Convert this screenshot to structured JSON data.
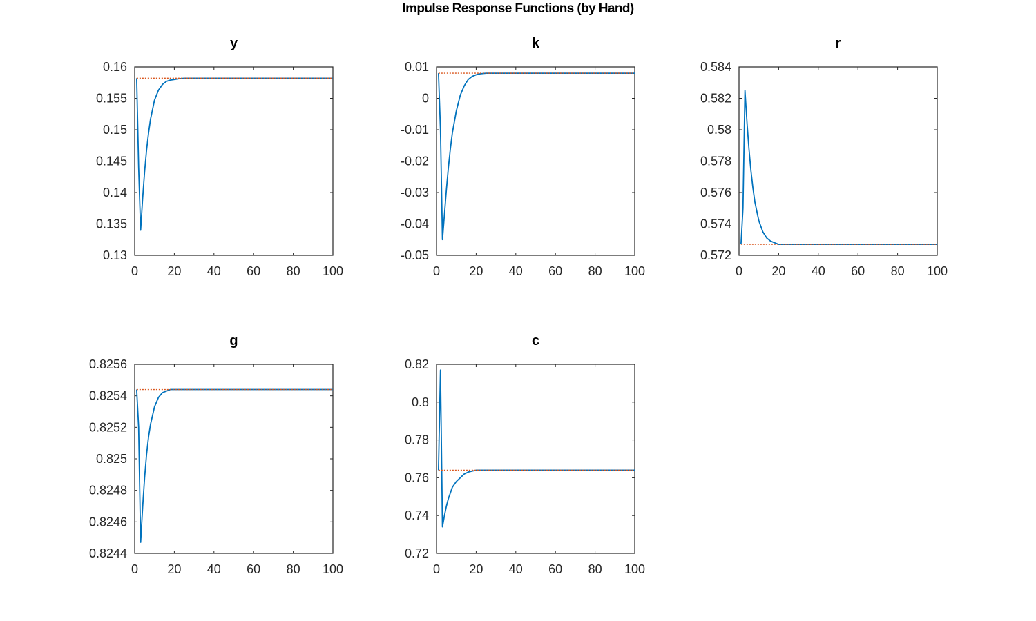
{
  "figure": {
    "title": "Impulse Response Functions (by Hand)"
  },
  "colors": {
    "response_line": "#0072BD",
    "steady_state_line": "#D95319",
    "axes": "#262626",
    "background": "#ffffff"
  },
  "chart_data": [
    {
      "type": "line",
      "title": "y",
      "xlim": [
        0,
        100
      ],
      "ylim": [
        0.13,
        0.16
      ],
      "xticks": [
        "0",
        "20",
        "40",
        "60",
        "80",
        "100"
      ],
      "yticks": [
        "0.13",
        "0.135",
        "0.14",
        "0.145",
        "0.15",
        "0.155",
        "0.16"
      ],
      "steady_state": 0.1582,
      "series": [
        {
          "x": [
            1,
            2,
            3,
            4,
            5,
            6,
            7,
            8,
            10,
            12,
            14,
            16,
            18,
            20,
            22,
            25,
            30,
            40,
            60,
            80,
            100
          ],
          "values": [
            0.1582,
            0.144,
            0.134,
            0.139,
            0.1433,
            0.1468,
            0.1495,
            0.1517,
            0.1547,
            0.1563,
            0.1572,
            0.1577,
            0.1579,
            0.158,
            0.1581,
            0.1582,
            0.1582,
            0.1582,
            0.1582,
            0.1582,
            0.1582
          ]
        }
      ]
    },
    {
      "type": "line",
      "title": "k",
      "xlim": [
        0,
        100
      ],
      "ylim": [
        -0.05,
        0.01
      ],
      "xticks": [
        "0",
        "20",
        "40",
        "60",
        "80",
        "100"
      ],
      "yticks": [
        "-0.05",
        "-0.04",
        "-0.03",
        "-0.02",
        "-0.01",
        "0",
        "0.01"
      ],
      "steady_state": 0.008,
      "series": [
        {
          "x": [
            1,
            2,
            3,
            4,
            5,
            6,
            7,
            8,
            10,
            12,
            14,
            16,
            18,
            20,
            22,
            25,
            30,
            40,
            60,
            80,
            100
          ],
          "values": [
            0.008,
            -0.01,
            -0.045,
            -0.037,
            -0.029,
            -0.022,
            -0.016,
            -0.011,
            -0.004,
            0.001,
            0.004,
            0.006,
            0.007,
            0.0075,
            0.0078,
            0.008,
            0.008,
            0.008,
            0.008,
            0.008,
            0.008
          ]
        }
      ]
    },
    {
      "type": "line",
      "title": "r",
      "xlim": [
        0,
        100
      ],
      "ylim": [
        0.572,
        0.584
      ],
      "xticks": [
        "0",
        "20",
        "40",
        "60",
        "80",
        "100"
      ],
      "yticks": [
        "0.572",
        "0.574",
        "0.576",
        "0.578",
        "0.58",
        "0.582",
        "0.584"
      ],
      "steady_state": 0.5727,
      "series": [
        {
          "x": [
            1,
            2,
            3,
            4,
            5,
            6,
            7,
            8,
            10,
            12,
            14,
            16,
            18,
            20,
            22,
            25,
            30,
            40,
            60,
            80,
            100
          ],
          "values": [
            0.5727,
            0.575,
            0.5825,
            0.5805,
            0.5788,
            0.5774,
            0.5763,
            0.5754,
            0.5742,
            0.5735,
            0.5731,
            0.5729,
            0.5728,
            0.5727,
            0.5727,
            0.5727,
            0.5727,
            0.5727,
            0.5727,
            0.5727,
            0.5727
          ]
        }
      ]
    },
    {
      "type": "line",
      "title": "g",
      "xlim": [
        0,
        100
      ],
      "ylim": [
        0.8244,
        0.8256
      ],
      "xticks": [
        "0",
        "20",
        "40",
        "60",
        "80",
        "100"
      ],
      "yticks": [
        "0.8244",
        "0.8246",
        "0.8248",
        "0.825",
        "0.8252",
        "0.8254",
        "0.8256"
      ],
      "steady_state": 0.82544,
      "series": [
        {
          "x": [
            1,
            2,
            3,
            4,
            5,
            6,
            7,
            8,
            10,
            12,
            14,
            16,
            18,
            20,
            22,
            25,
            30,
            40,
            60,
            80,
            100
          ],
          "values": [
            0.82544,
            0.8252,
            0.82447,
            0.82469,
            0.82488,
            0.82503,
            0.82514,
            0.82522,
            0.82533,
            0.82539,
            0.82542,
            0.82543,
            0.82544,
            0.82544,
            0.82544,
            0.82544,
            0.82544,
            0.82544,
            0.82544,
            0.82544,
            0.82544
          ]
        }
      ]
    },
    {
      "type": "line",
      "title": "c",
      "xlim": [
        0,
        100
      ],
      "ylim": [
        0.72,
        0.82
      ],
      "xticks": [
        "0",
        "20",
        "40",
        "60",
        "80",
        "100"
      ],
      "yticks": [
        "0.72",
        "0.74",
        "0.76",
        "0.78",
        "0.8",
        "0.82"
      ],
      "steady_state": 0.764,
      "series": [
        {
          "x": [
            1,
            2,
            3,
            4,
            5,
            6,
            7,
            8,
            10,
            12,
            14,
            16,
            18,
            20,
            22,
            25,
            30,
            40,
            60,
            80,
            100
          ],
          "values": [
            0.764,
            0.817,
            0.734,
            0.74,
            0.745,
            0.749,
            0.752,
            0.755,
            0.758,
            0.76,
            0.762,
            0.763,
            0.7635,
            0.764,
            0.764,
            0.764,
            0.764,
            0.764,
            0.764,
            0.764,
            0.764
          ]
        }
      ]
    }
  ]
}
